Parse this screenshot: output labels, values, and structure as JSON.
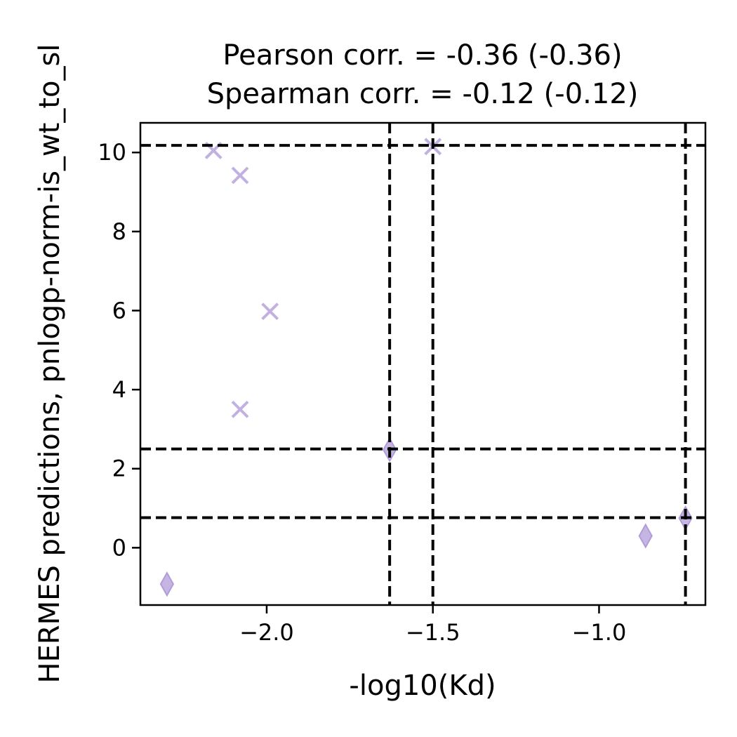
{
  "chart_data": {
    "type": "scatter",
    "title_lines": [
      "Pearson corr. = -0.36 (-0.36)",
      "Spearman corr. = -0.12 (-0.12)"
    ],
    "xlabel": "-log10(Kd)",
    "ylabel": "HERMES predictions, pnlogp-norm-is_wt_to_sl",
    "xlim": [
      -2.38,
      -0.68
    ],
    "ylim": [
      -1.45,
      10.75
    ],
    "x_ticks": [
      -2.0,
      -1.5,
      -1.0
    ],
    "x_tick_labels": [
      "−2.0",
      "−1.5",
      "−1.0"
    ],
    "y_ticks": [
      0,
      2,
      4,
      6,
      8,
      10
    ],
    "y_tick_labels": [
      "0",
      "2",
      "4",
      "6",
      "8",
      "10"
    ],
    "grid": false,
    "marker_color": "#b19cd9",
    "series": [
      {
        "marker": "x",
        "points": [
          {
            "x": -2.16,
            "y": 10.05
          },
          {
            "x": -2.08,
            "y": 9.42
          },
          {
            "x": -1.99,
            "y": 5.98
          },
          {
            "x": -2.08,
            "y": 3.5
          },
          {
            "x": -1.5,
            "y": 10.15
          }
        ]
      },
      {
        "marker": "diamond",
        "points": [
          {
            "x": -2.3,
            "y": -0.92
          },
          {
            "x": -1.63,
            "y": 2.48
          },
          {
            "x": -0.86,
            "y": 0.3
          },
          {
            "x": -0.74,
            "y": 0.75
          }
        ]
      }
    ],
    "reference_lines": {
      "vertical": [
        -1.63,
        -1.5,
        -0.74
      ],
      "horizontal": [
        10.18,
        2.5,
        0.76
      ],
      "style": "dashed",
      "color": "#000000"
    }
  }
}
